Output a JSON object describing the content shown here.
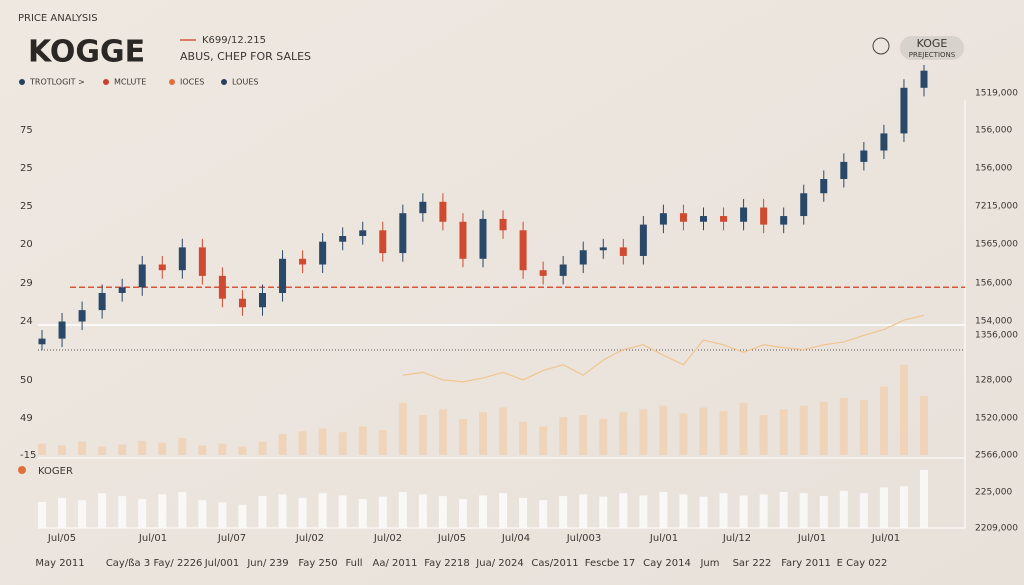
{
  "chart_data": {
    "type": "candlestick",
    "header_label": "PRICE ANALYSIS",
    "title": "KOGGE",
    "subtitle_code": "K699/12.215",
    "subtitle": "ABUS, CHEP FOR SALES",
    "badge_title": "KOGE",
    "badge_subtitle": "PREJECTIONS",
    "legend": [
      {
        "label": "TROTLOGIT >",
        "color": "#27405e"
      },
      {
        "label": "MCLUTE",
        "color": "#c9402c"
      },
      {
        "label": "IOCES",
        "color": "#e0703a"
      },
      {
        "label": "LOUES",
        "color": "#27405e"
      }
    ],
    "left_axis_labels": [
      "75",
      "25",
      "25",
      "20",
      "29",
      "24",
      "50",
      "49",
      "-15"
    ],
    "right_axis_labels": [
      "1519,000",
      "156,000",
      "156,000",
      "7215,000",
      "1565,000",
      "156,000",
      "154,000",
      "1356,000",
      "128,000",
      "1520,000",
      "2566,000",
      "225,000",
      "2209,000"
    ],
    "x_labels_top": [
      "Jul/05",
      "Jul/01",
      "Jul/07",
      "Jul/02",
      "Jul/02",
      "Jul/05",
      "Jul/04",
      "Jul/003",
      "Jul/01",
      "Jul/12",
      "Jul/01",
      "Jul/01"
    ],
    "x_labels_bottom": [
      "May 2011",
      "Cay/ßa 3",
      "Fay/ 2226",
      "Jul/001",
      "Jun/ 239",
      "Fay 250",
      "Full",
      "Aa/ 2011",
      "Fay 2218",
      "Jua/ 2024",
      "Cas/2011",
      "Fescbe 17",
      "Cay 2014",
      "Jum",
      "Sar 222",
      "Fary 2011",
      "E Cay 022"
    ],
    "lower_pane_label": "KOGER",
    "up_color": "#2a4868",
    "down_color": "#cf4a30",
    "ylim": [
      0,
      100
    ],
    "open": [
      2,
      4,
      10,
      14,
      20,
      22,
      30,
      28,
      36,
      26,
      18,
      15,
      20,
      32,
      30,
      38,
      40,
      42,
      34,
      48,
      52,
      45,
      32,
      46,
      42,
      28,
      26,
      30,
      35,
      36,
      33,
      44,
      48,
      45,
      47,
      45,
      50,
      44,
      47,
      55,
      60,
      66,
      70,
      76,
      92
    ],
    "high": [
      7,
      13,
      17,
      23,
      25,
      33,
      33,
      39,
      39,
      29,
      21,
      23,
      35,
      35,
      41,
      43,
      45,
      45,
      51,
      55,
      55,
      48,
      49,
      49,
      45,
      31,
      33,
      38,
      39,
      39,
      47,
      51,
      51,
      50,
      50,
      53,
      53,
      50,
      58,
      63,
      69,
      73,
      79,
      95,
      100
    ],
    "low": [
      0,
      1,
      7,
      11,
      17,
      19,
      25,
      25,
      23,
      15,
      12,
      12,
      17,
      27,
      27,
      35,
      37,
      31,
      31,
      45,
      42,
      29,
      29,
      39,
      25,
      23,
      23,
      27,
      32,
      30,
      30,
      41,
      42,
      42,
      42,
      42,
      41,
      41,
      44,
      52,
      57,
      63,
      67,
      73,
      89
    ],
    "close": [
      4,
      10,
      14,
      20,
      22,
      30,
      28,
      36,
      26,
      18,
      15,
      20,
      32,
      30,
      38,
      40,
      42,
      34,
      48,
      52,
      45,
      32,
      46,
      42,
      28,
      26,
      30,
      35,
      36,
      33,
      44,
      48,
      45,
      47,
      45,
      50,
      44,
      47,
      55,
      60,
      66,
      70,
      76,
      92,
      98
    ],
    "reference_line": 22,
    "reference_color": "#d9553a",
    "volume_ylim": [
      0,
      100
    ],
    "volume_color": "#f1cfb0",
    "volume": [
      12,
      10,
      14,
      9,
      11,
      15,
      13,
      18,
      10,
      12,
      9,
      14,
      22,
      25,
      28,
      24,
      30,
      26,
      55,
      42,
      48,
      38,
      45,
      50,
      35,
      30,
      40,
      42,
      38,
      45,
      48,
      52,
      44,
      50,
      46,
      55,
      42,
      48,
      52,
      56,
      60,
      58,
      72,
      95,
      62
    ],
    "trend_color": "#f0c48e",
    "trend": [
      null,
      null,
      null,
      null,
      null,
      null,
      null,
      null,
      null,
      null,
      null,
      null,
      null,
      null,
      null,
      null,
      null,
      null,
      84,
      87,
      79,
      77,
      81,
      87,
      79,
      89,
      95,
      84,
      100,
      111,
      116,
      105,
      95,
      121,
      116,
      108,
      116,
      113,
      111,
      116,
      119,
      126,
      132,
      142,
      147
    ],
    "lower_ylim": [
      0,
      100
    ],
    "lower_color": "#fbfaf8",
    "lower": [
      45,
      52,
      48,
      60,
      55,
      50,
      58,
      62,
      48,
      44,
      40,
      55,
      58,
      52,
      60,
      56,
      50,
      54,
      62,
      58,
      55,
      50,
      56,
      60,
      52,
      48,
      55,
      58,
      54,
      60,
      56,
      62,
      58,
      54,
      60,
      56,
      58,
      62,
      60,
      55,
      64,
      60,
      70,
      72,
      100
    ]
  }
}
